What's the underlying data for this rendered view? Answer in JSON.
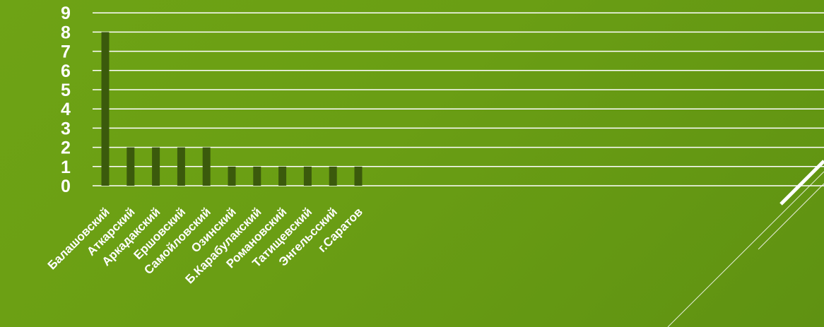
{
  "chart_data": {
    "type": "bar",
    "categories": [
      "Балашовский",
      "Аткарский",
      "Аркадакский",
      "Ершовский",
      "Самойловский",
      "Озинский",
      "Б.Карабулакский",
      "Романовский",
      "Татищевский",
      "Энгельсский",
      "г.Саратов"
    ],
    "values": [
      8,
      2,
      2,
      2,
      2,
      1,
      1,
      1,
      1,
      1,
      1
    ],
    "y_ticks": [
      "0",
      "1",
      "2",
      "3",
      "4",
      "5",
      "6",
      "7",
      "8",
      "9"
    ],
    "ylim": [
      0,
      9
    ],
    "grid": true,
    "legend": "none",
    "title": "",
    "xlabel": "",
    "ylabel": ""
  },
  "colors": {
    "bar": "#3b5a0c",
    "grid": "#ffffff",
    "text": "#ffffff",
    "background": "#6a9e14"
  }
}
